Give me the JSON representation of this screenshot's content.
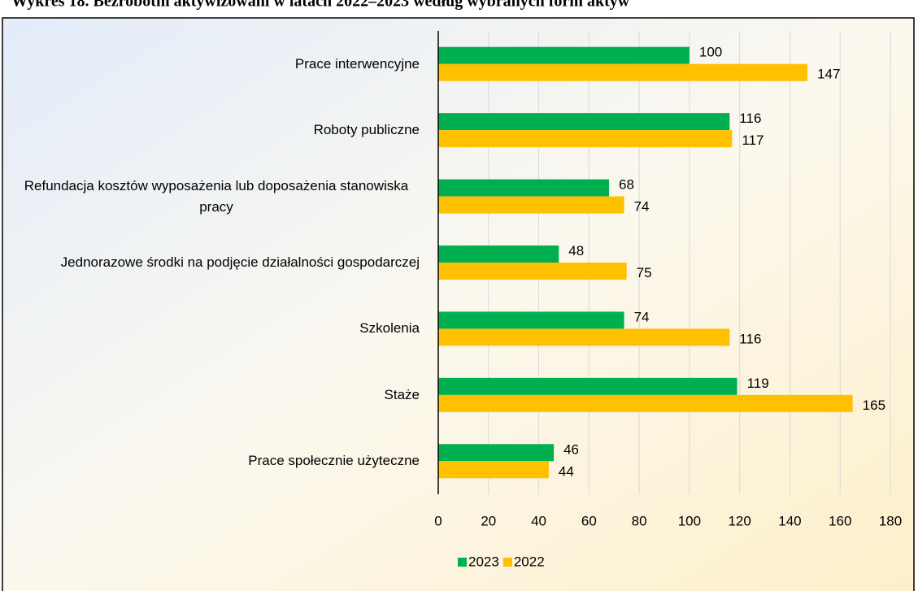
{
  "chart_data": {
    "type": "bar",
    "orientation": "horizontal",
    "title": "Wykres 18. Bezrobotni aktywizowani w latach 2022–2023 według wybranych form aktyw",
    "categories": [
      "Prace interwencyjne",
      "Roboty publiczne",
      "Refundacja kosztów wyposażenia lub doposażenia stanowiska pracy",
      "Jednorazowe środki na podjęcie działalności gospodarczej",
      "Szkolenia",
      "Staże",
      "Prace społecznie użyteczne"
    ],
    "series": [
      {
        "name": "2023",
        "color": "#00b050",
        "values": [
          100,
          116,
          68,
          48,
          74,
          119,
          46
        ]
      },
      {
        "name": "2022",
        "color": "#ffc000",
        "values": [
          147,
          117,
          74,
          75,
          116,
          165,
          44
        ]
      }
    ],
    "xlim": [
      0,
      180
    ],
    "xticks": [
      0,
      20,
      40,
      60,
      80,
      100,
      120,
      140,
      160,
      180
    ],
    "grid": true,
    "legend": "bottom"
  }
}
